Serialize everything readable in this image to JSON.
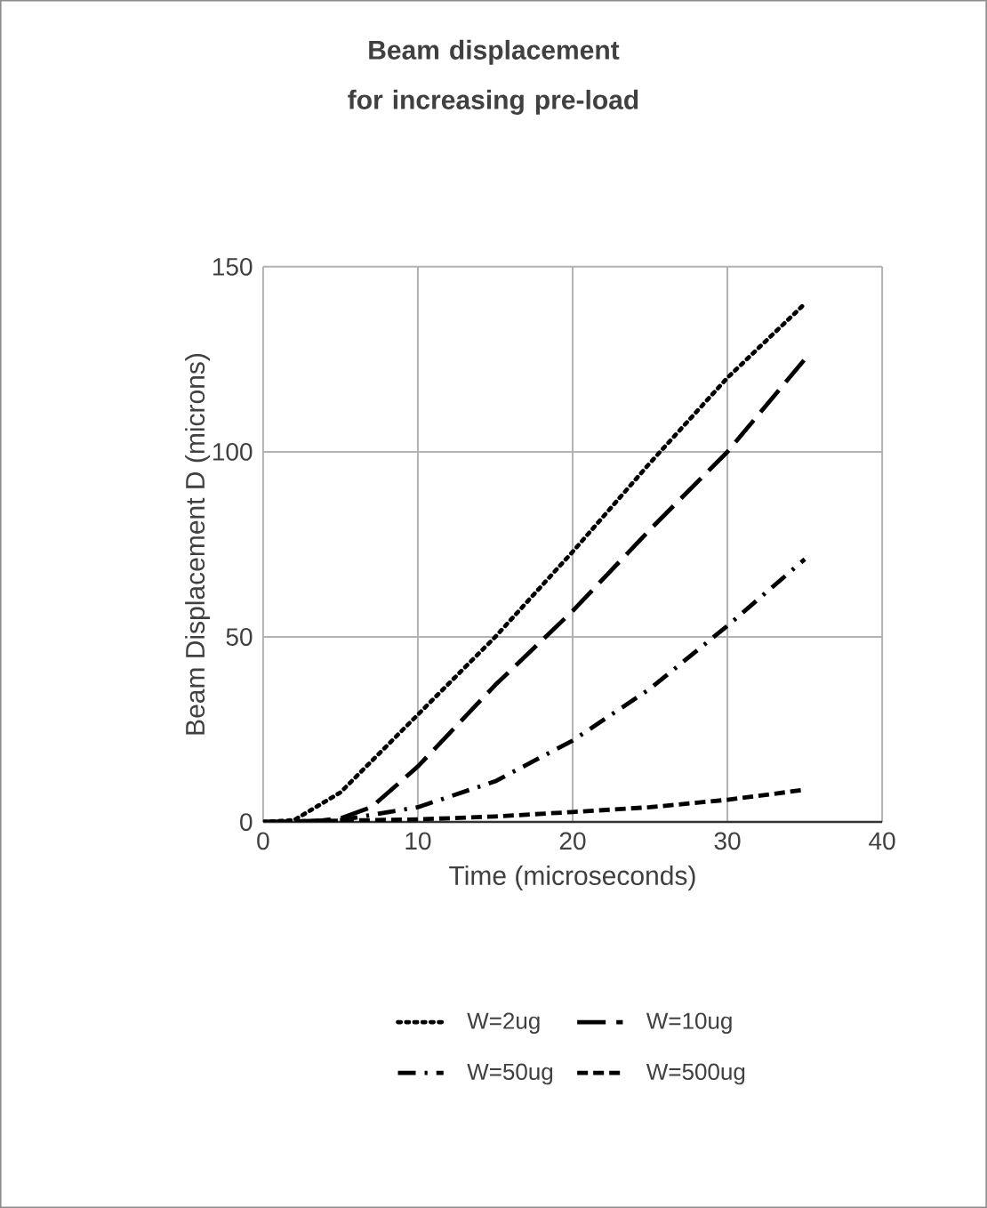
{
  "chart_data": {
    "type": "line",
    "title": "Beam displacement for increasing pre-load",
    "xlabel": "Time (microseconds)",
    "ylabel": "Beam Displacement D (microns)",
    "xlim": [
      0,
      40
    ],
    "xticks": [
      0,
      10,
      20,
      30,
      40
    ],
    "ylim": [
      0,
      150
    ],
    "yticks": [
      0,
      50,
      100,
      150
    ],
    "grid": true,
    "legend": "bottom",
    "series": [
      {
        "name": "W=2ug",
        "color": "#000000",
        "line_style": "dotted",
        "x": [
          0,
          2,
          5,
          10,
          15,
          20,
          25,
          30,
          35
        ],
        "values": [
          0,
          0.5,
          8,
          29,
          50,
          73,
          97,
          120,
          140
        ]
      },
      {
        "name": "W=10ug",
        "color": "#000000",
        "line_style": "long dashed",
        "x": [
          0,
          3,
          5,
          7,
          10,
          15,
          20,
          25,
          30,
          35
        ],
        "values": [
          0,
          0,
          1,
          4,
          15,
          37,
          57,
          79,
          100,
          125
        ]
      },
      {
        "name": "W=50ug",
        "color": "#000000",
        "line_style": "dash dot",
        "x": [
          0,
          5,
          10,
          15,
          20,
          25,
          30,
          35
        ],
        "values": [
          0,
          0.5,
          4,
          11,
          22,
          36,
          53,
          71
        ]
      },
      {
        "name": "W=500ug",
        "color": "#000000",
        "line_style": "dashed",
        "x": [
          0,
          10,
          15,
          20,
          25,
          30,
          35
        ],
        "values": [
          0,
          0.7,
          1.5,
          2.7,
          4,
          6,
          8.7
        ]
      }
    ]
  }
}
